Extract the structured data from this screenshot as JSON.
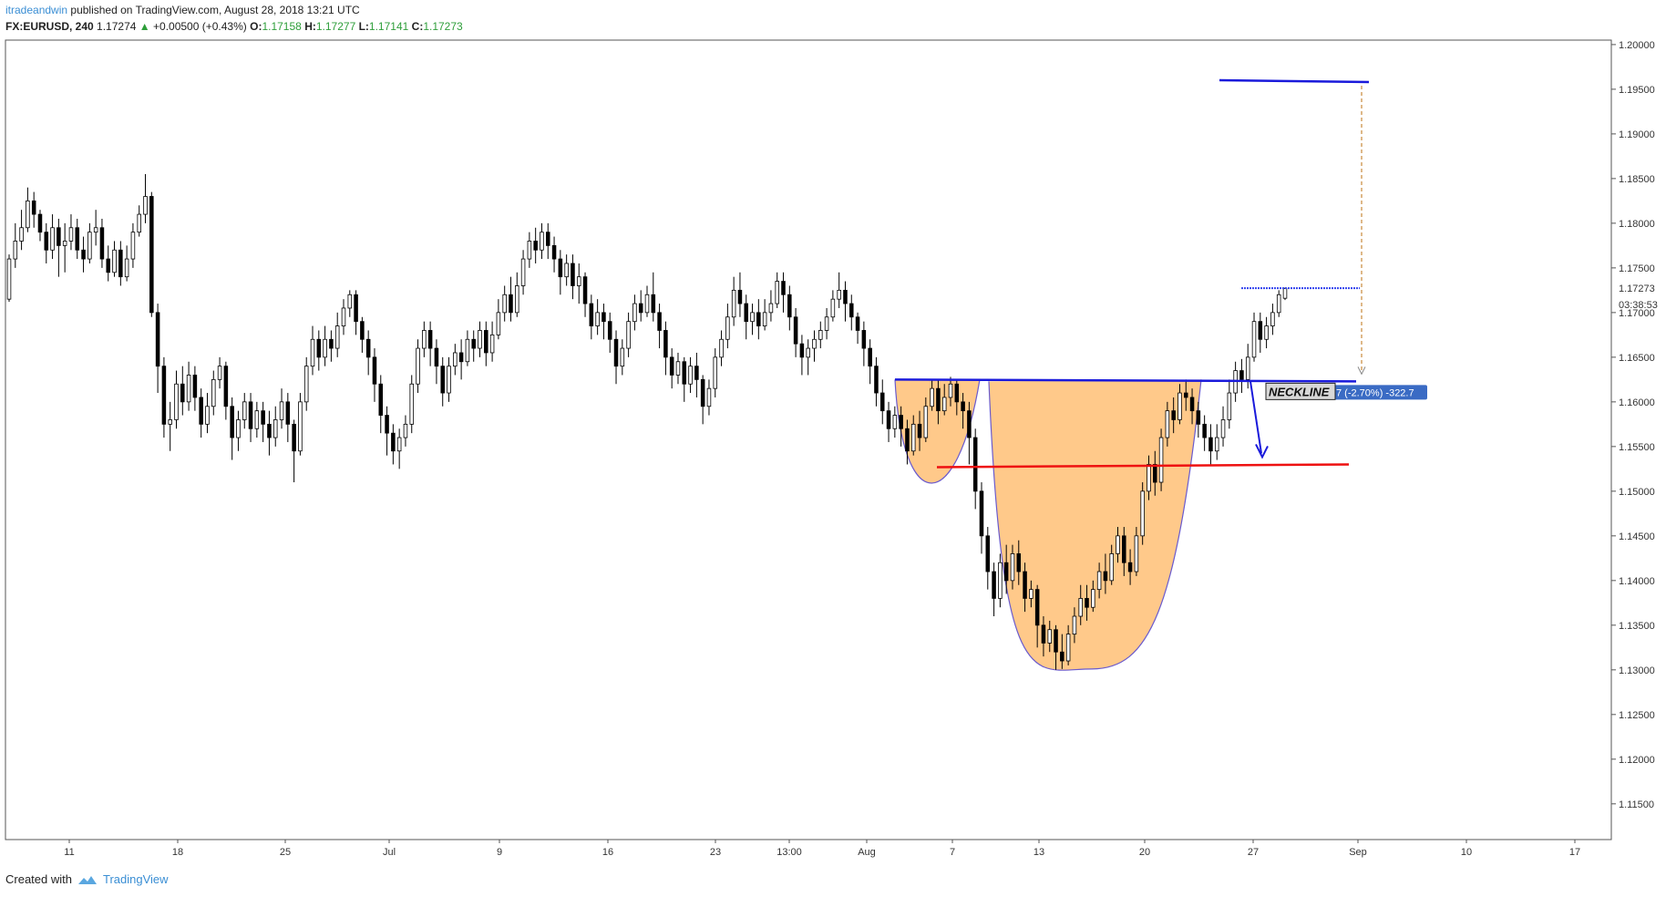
{
  "header": {
    "author": "itradeandwin",
    "published": "published on TradingView.com, August 28, 2018 13:21 UTC"
  },
  "symbol": {
    "name": "FX:EURUSD, 240",
    "last": "1.17274",
    "change": "+0.00500 (+0.43%)",
    "open_label": "O:",
    "open": "1.17158",
    "high_label": "H:",
    "high": "1.17277",
    "low_label": "L:",
    "low": "1.17141",
    "close_label": "C:",
    "close": "1.17273"
  },
  "footer": {
    "created_with": "Created with",
    "brand": "TradingView"
  },
  "colors": {
    "candle": "#000000",
    "pattern_fill": "#ffc98a",
    "pattern_stroke": "#6a5acd",
    "neckline": "#1a1adb",
    "support": "#ee1111",
    "target_line": "#1a1adb",
    "price_tag": "#3a6bc4",
    "projection": "#d4a060"
  },
  "chart_data": {
    "type": "candlestick",
    "ylim": [
      1.111,
      1.2005
    ],
    "y_ticks": [
      "1.20000",
      "1.19500",
      "1.19000",
      "1.18500",
      "1.18000",
      "1.17500",
      "1.17000",
      "1.16500",
      "1.16000",
      "1.15500",
      "1.15000",
      "1.14500",
      "1.14000",
      "1.13500",
      "1.13000",
      "1.12500",
      "1.12000",
      "1.11500"
    ],
    "x_tick_labels": [
      "11",
      "18",
      "25",
      "Jul",
      "9",
      "16",
      "23",
      "13:00",
      "Aug",
      "7",
      "13",
      "20",
      "27",
      "Sep",
      "10",
      "17"
    ],
    "last_price_tag": "1.17273",
    "countdown_tag": "03:38:53",
    "annotations": {
      "neckline_label": "NECKLINE",
      "measure_label": "7 (-2.70%) -322.7",
      "neckline_price": 1.1625,
      "support_price": 1.153,
      "target_price": 1.1958,
      "current_price_line": 1.17273
    },
    "candles": [
      [
        1.1715,
        1.176,
        1.1712,
        1.1765
      ],
      [
        1.176,
        1.178,
        1.175,
        1.18
      ],
      [
        1.178,
        1.1795,
        1.177,
        1.1815
      ],
      [
        1.1795,
        1.1825,
        1.179,
        1.184
      ],
      [
        1.1825,
        1.181,
        1.1795,
        1.1835
      ],
      [
        1.181,
        1.179,
        1.178,
        1.1815
      ],
      [
        1.179,
        1.177,
        1.1755,
        1.18
      ],
      [
        1.177,
        1.1795,
        1.176,
        1.181
      ],
      [
        1.1795,
        1.1775,
        1.174,
        1.1805
      ],
      [
        1.1775,
        1.178,
        1.1745,
        1.18
      ],
      [
        1.178,
        1.1795,
        1.177,
        1.181
      ],
      [
        1.1795,
        1.177,
        1.176,
        1.1805
      ],
      [
        1.177,
        1.176,
        1.1745,
        1.1785
      ],
      [
        1.176,
        1.179,
        1.1755,
        1.18
      ],
      [
        1.179,
        1.1795,
        1.1775,
        1.1815
      ],
      [
        1.1795,
        1.176,
        1.175,
        1.1805
      ],
      [
        1.176,
        1.1745,
        1.1735,
        1.1775
      ],
      [
        1.1745,
        1.177,
        1.174,
        1.178
      ],
      [
        1.177,
        1.174,
        1.173,
        1.178
      ],
      [
        1.174,
        1.176,
        1.1735,
        1.1775
      ],
      [
        1.176,
        1.179,
        1.175,
        1.18
      ],
      [
        1.179,
        1.181,
        1.1785,
        1.182
      ],
      [
        1.181,
        1.183,
        1.18,
        1.1855
      ],
      [
        1.183,
        1.17,
        1.1695,
        1.1835
      ],
      [
        1.17,
        1.164,
        1.161,
        1.171
      ],
      [
        1.164,
        1.1575,
        1.156,
        1.165
      ],
      [
        1.1575,
        1.158,
        1.1545,
        1.16
      ],
      [
        1.158,
        1.162,
        1.157,
        1.1635
      ],
      [
        1.162,
        1.16,
        1.1585,
        1.164
      ],
      [
        1.16,
        1.163,
        1.159,
        1.1645
      ],
      [
        1.163,
        1.1605,
        1.159,
        1.164
      ],
      [
        1.1605,
        1.1575,
        1.156,
        1.1615
      ],
      [
        1.1575,
        1.1595,
        1.1565,
        1.161
      ],
      [
        1.1595,
        1.1625,
        1.1585,
        1.1635
      ],
      [
        1.1625,
        1.164,
        1.1615,
        1.165
      ],
      [
        1.164,
        1.1595,
        1.158,
        1.1645
      ],
      [
        1.1595,
        1.156,
        1.1535,
        1.1605
      ],
      [
        1.156,
        1.158,
        1.1545,
        1.159
      ],
      [
        1.158,
        1.16,
        1.157,
        1.161
      ],
      [
        1.16,
        1.157,
        1.1555,
        1.161
      ],
      [
        1.157,
        1.159,
        1.156,
        1.16
      ],
      [
        1.159,
        1.1575,
        1.1555,
        1.16
      ],
      [
        1.1575,
        1.156,
        1.154,
        1.159
      ],
      [
        1.156,
        1.158,
        1.155,
        1.1595
      ],
      [
        1.158,
        1.16,
        1.157,
        1.1615
      ],
      [
        1.16,
        1.1575,
        1.1555,
        1.161
      ],
      [
        1.1575,
        1.1545,
        1.151,
        1.158
      ],
      [
        1.1545,
        1.16,
        1.154,
        1.161
      ],
      [
        1.16,
        1.164,
        1.159,
        1.165
      ],
      [
        1.164,
        1.167,
        1.163,
        1.1685
      ],
      [
        1.167,
        1.165,
        1.1635,
        1.168
      ],
      [
        1.165,
        1.167,
        1.164,
        1.1685
      ],
      [
        1.167,
        1.166,
        1.1645,
        1.168
      ],
      [
        1.166,
        1.1685,
        1.165,
        1.17
      ],
      [
        1.1685,
        1.1705,
        1.1675,
        1.1715
      ],
      [
        1.1705,
        1.172,
        1.1695,
        1.1725
      ],
      [
        1.172,
        1.169,
        1.1675,
        1.1725
      ],
      [
        1.169,
        1.167,
        1.1655,
        1.1695
      ],
      [
        1.167,
        1.165,
        1.163,
        1.168
      ],
      [
        1.165,
        1.162,
        1.16,
        1.166
      ],
      [
        1.162,
        1.1585,
        1.1565,
        1.163
      ],
      [
        1.1585,
        1.1565,
        1.154,
        1.1595
      ],
      [
        1.1565,
        1.1545,
        1.153,
        1.1575
      ],
      [
        1.1545,
        1.156,
        1.1525,
        1.157
      ],
      [
        1.156,
        1.1575,
        1.155,
        1.1585
      ],
      [
        1.1575,
        1.162,
        1.1565,
        1.163
      ],
      [
        1.162,
        1.166,
        1.161,
        1.167
      ],
      [
        1.166,
        1.168,
        1.165,
        1.169
      ],
      [
        1.168,
        1.166,
        1.164,
        1.169
      ],
      [
        1.166,
        1.164,
        1.162,
        1.167
      ],
      [
        1.164,
        1.161,
        1.1595,
        1.165
      ],
      [
        1.161,
        1.164,
        1.16,
        1.165
      ],
      [
        1.164,
        1.1655,
        1.163,
        1.1665
      ],
      [
        1.1655,
        1.1645,
        1.1625,
        1.167
      ],
      [
        1.1645,
        1.167,
        1.164,
        1.168
      ],
      [
        1.167,
        1.166,
        1.1645,
        1.168
      ],
      [
        1.166,
        1.168,
        1.165,
        1.169
      ],
      [
        1.168,
        1.1655,
        1.164,
        1.169
      ],
      [
        1.1655,
        1.1675,
        1.1645,
        1.169
      ],
      [
        1.1675,
        1.17,
        1.167,
        1.1715
      ],
      [
        1.17,
        1.172,
        1.169,
        1.173
      ],
      [
        1.172,
        1.17,
        1.169,
        1.174
      ],
      [
        1.17,
        1.173,
        1.1695,
        1.1745
      ],
      [
        1.173,
        1.176,
        1.172,
        1.177
      ],
      [
        1.176,
        1.178,
        1.175,
        1.179
      ],
      [
        1.178,
        1.177,
        1.1755,
        1.1795
      ],
      [
        1.177,
        1.179,
        1.176,
        1.18
      ],
      [
        1.179,
        1.1775,
        1.176,
        1.18
      ],
      [
        1.1775,
        1.176,
        1.1745,
        1.1785
      ],
      [
        1.176,
        1.174,
        1.172,
        1.177
      ],
      [
        1.174,
        1.1755,
        1.173,
        1.1765
      ],
      [
        1.1755,
        1.173,
        1.1715,
        1.1765
      ],
      [
        1.173,
        1.174,
        1.171,
        1.1755
      ],
      [
        1.174,
        1.171,
        1.1695,
        1.1745
      ],
      [
        1.171,
        1.1685,
        1.167,
        1.172
      ],
      [
        1.1685,
        1.17,
        1.1675,
        1.1715
      ],
      [
        1.17,
        1.169,
        1.167,
        1.171
      ],
      [
        1.169,
        1.167,
        1.1655,
        1.17
      ],
      [
        1.167,
        1.164,
        1.162,
        1.168
      ],
      [
        1.164,
        1.166,
        1.163,
        1.167
      ],
      [
        1.166,
        1.169,
        1.165,
        1.17
      ],
      [
        1.169,
        1.171,
        1.168,
        1.172
      ],
      [
        1.171,
        1.17,
        1.169,
        1.1725
      ],
      [
        1.17,
        1.172,
        1.1695,
        1.173
      ],
      [
        1.172,
        1.17,
        1.169,
        1.1745
      ],
      [
        1.17,
        1.168,
        1.166,
        1.171
      ],
      [
        1.168,
        1.165,
        1.163,
        1.169
      ],
      [
        1.165,
        1.163,
        1.1615,
        1.166
      ],
      [
        1.163,
        1.1645,
        1.162,
        1.1655
      ],
      [
        1.1645,
        1.162,
        1.16,
        1.165
      ],
      [
        1.162,
        1.164,
        1.161,
        1.165
      ],
      [
        1.164,
        1.1625,
        1.1605,
        1.1655
      ],
      [
        1.1625,
        1.1595,
        1.1575,
        1.163
      ],
      [
        1.1595,
        1.1615,
        1.1585,
        1.1625
      ],
      [
        1.1615,
        1.165,
        1.1605,
        1.166
      ],
      [
        1.165,
        1.167,
        1.164,
        1.168
      ],
      [
        1.167,
        1.1695,
        1.166,
        1.171
      ],
      [
        1.1695,
        1.1725,
        1.1685,
        1.174
      ],
      [
        1.1725,
        1.171,
        1.1695,
        1.1745
      ],
      [
        1.171,
        1.169,
        1.167,
        1.172
      ],
      [
        1.169,
        1.17,
        1.1675,
        1.171
      ],
      [
        1.17,
        1.1685,
        1.167,
        1.1715
      ],
      [
        1.1685,
        1.17,
        1.168,
        1.1715
      ],
      [
        1.17,
        1.171,
        1.169,
        1.1725
      ],
      [
        1.171,
        1.1735,
        1.1705,
        1.1745
      ],
      [
        1.1735,
        1.172,
        1.17,
        1.1745
      ],
      [
        1.172,
        1.1695,
        1.168,
        1.173
      ],
      [
        1.1695,
        1.1665,
        1.165,
        1.1705
      ],
      [
        1.1665,
        1.165,
        1.163,
        1.1675
      ],
      [
        1.165,
        1.166,
        1.163,
        1.167
      ],
      [
        1.166,
        1.167,
        1.1645,
        1.168
      ],
      [
        1.167,
        1.168,
        1.166,
        1.169
      ],
      [
        1.168,
        1.1695,
        1.167,
        1.1705
      ],
      [
        1.1695,
        1.1715,
        1.169,
        1.1725
      ],
      [
        1.1715,
        1.1725,
        1.1705,
        1.1745
      ],
      [
        1.1725,
        1.171,
        1.169,
        1.1735
      ],
      [
        1.171,
        1.1695,
        1.168,
        1.172
      ],
      [
        1.1695,
        1.168,
        1.1665,
        1.17
      ],
      [
        1.168,
        1.166,
        1.164,
        1.169
      ],
      [
        1.166,
        1.164,
        1.162,
        1.167
      ],
      [
        1.164,
        1.161,
        1.1595,
        1.165
      ],
      [
        1.161,
        1.159,
        1.1575,
        1.1625
      ],
      [
        1.159,
        1.157,
        1.1555,
        1.16
      ],
      [
        1.157,
        1.1585,
        1.156,
        1.1595
      ],
      [
        1.1585,
        1.157,
        1.155,
        1.1595
      ],
      [
        1.157,
        1.1545,
        1.153,
        1.158
      ],
      [
        1.1545,
        1.1575,
        1.154,
        1.1585
      ],
      [
        1.1575,
        1.156,
        1.1545,
        1.159
      ],
      [
        1.156,
        1.1595,
        1.1555,
        1.1605
      ],
      [
        1.1595,
        1.1615,
        1.159,
        1.1625
      ],
      [
        1.1615,
        1.159,
        1.1575,
        1.1625
      ],
      [
        1.159,
        1.1605,
        1.1585,
        1.162
      ],
      [
        1.1605,
        1.162,
        1.1595,
        1.1628
      ],
      [
        1.162,
        1.16,
        1.1585,
        1.1625
      ],
      [
        1.16,
        1.159,
        1.157,
        1.161
      ],
      [
        1.159,
        1.156,
        1.153,
        1.16
      ],
      [
        1.156,
        1.15,
        1.148,
        1.157
      ],
      [
        1.15,
        1.145,
        1.143,
        1.151
      ],
      [
        1.145,
        1.141,
        1.139,
        1.146
      ],
      [
        1.141,
        1.138,
        1.136,
        1.142
      ],
      [
        1.138,
        1.142,
        1.137,
        1.143
      ],
      [
        1.142,
        1.14,
        1.1385,
        1.144
      ],
      [
        1.14,
        1.143,
        1.139,
        1.144
      ],
      [
        1.143,
        1.141,
        1.1395,
        1.1445
      ],
      [
        1.141,
        1.138,
        1.1365,
        1.142
      ],
      [
        1.138,
        1.139,
        1.137,
        1.14
      ],
      [
        1.139,
        1.135,
        1.1325,
        1.1395
      ],
      [
        1.135,
        1.133,
        1.1315,
        1.136
      ],
      [
        1.133,
        1.1345,
        1.132,
        1.1355
      ],
      [
        1.1345,
        1.132,
        1.13,
        1.135
      ],
      [
        1.132,
        1.131,
        1.1301,
        1.134
      ],
      [
        1.131,
        1.134,
        1.1305,
        1.135
      ],
      [
        1.134,
        1.136,
        1.133,
        1.137
      ],
      [
        1.136,
        1.138,
        1.135,
        1.1395
      ],
      [
        1.138,
        1.137,
        1.1355,
        1.1395
      ],
      [
        1.137,
        1.139,
        1.1365,
        1.14
      ],
      [
        1.139,
        1.141,
        1.138,
        1.142
      ],
      [
        1.141,
        1.14,
        1.1385,
        1.143
      ],
      [
        1.14,
        1.143,
        1.1395,
        1.144
      ],
      [
        1.143,
        1.145,
        1.142,
        1.146
      ],
      [
        1.145,
        1.142,
        1.1405,
        1.146
      ],
      [
        1.142,
        1.141,
        1.1395,
        1.1435
      ],
      [
        1.141,
        1.145,
        1.1405,
        1.146
      ],
      [
        1.145,
        1.15,
        1.144,
        1.151
      ],
      [
        1.15,
        1.153,
        1.149,
        1.154
      ],
      [
        1.153,
        1.151,
        1.1495,
        1.1545
      ],
      [
        1.151,
        1.156,
        1.15,
        1.157
      ],
      [
        1.156,
        1.159,
        1.155,
        1.16
      ],
      [
        1.159,
        1.158,
        1.1565,
        1.1605
      ],
      [
        1.158,
        1.161,
        1.1575,
        1.162
      ],
      [
        1.161,
        1.1605,
        1.159,
        1.1625
      ],
      [
        1.1605,
        1.159,
        1.1575,
        1.1615
      ],
      [
        1.159,
        1.1575,
        1.156,
        1.16
      ],
      [
        1.1575,
        1.156,
        1.1545,
        1.1585
      ],
      [
        1.156,
        1.1545,
        1.153,
        1.1575
      ],
      [
        1.1545,
        1.156,
        1.1535,
        1.1575
      ],
      [
        1.156,
        1.158,
        1.155,
        1.1595
      ],
      [
        1.158,
        1.161,
        1.157,
        1.1625
      ],
      [
        1.161,
        1.1635,
        1.16,
        1.1645
      ],
      [
        1.1635,
        1.1625,
        1.161,
        1.1648
      ],
      [
        1.1625,
        1.165,
        1.1615,
        1.1665
      ],
      [
        1.165,
        1.169,
        1.1645,
        1.17
      ],
      [
        1.169,
        1.167,
        1.1655,
        1.17
      ],
      [
        1.167,
        1.1685,
        1.166,
        1.1695
      ],
      [
        1.1685,
        1.17,
        1.1675,
        1.171
      ],
      [
        1.17,
        1.172,
        1.1695,
        1.1725
      ],
      [
        1.1716,
        1.1727,
        1.1714,
        1.1728
      ]
    ]
  }
}
